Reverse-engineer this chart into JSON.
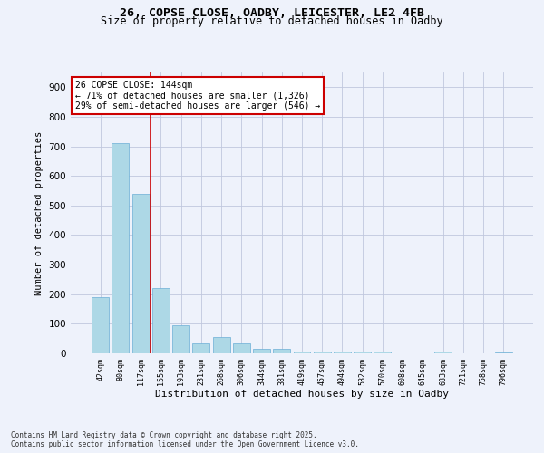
{
  "title_line1": "26, COPSE CLOSE, OADBY, LEICESTER, LE2 4FB",
  "title_line2": "Size of property relative to detached houses in Oadby",
  "xlabel": "Distribution of detached houses by size in Oadby",
  "ylabel": "Number of detached properties",
  "categories": [
    "42sqm",
    "80sqm",
    "117sqm",
    "155sqm",
    "193sqm",
    "231sqm",
    "268sqm",
    "306sqm",
    "344sqm",
    "381sqm",
    "419sqm",
    "457sqm",
    "494sqm",
    "532sqm",
    "570sqm",
    "608sqm",
    "645sqm",
    "683sqm",
    "721sqm",
    "758sqm",
    "796sqm"
  ],
  "values": [
    190,
    710,
    540,
    220,
    95,
    35,
    55,
    35,
    15,
    15,
    5,
    5,
    5,
    5,
    5,
    0,
    0,
    5,
    0,
    0,
    3
  ],
  "bar_color": "#add8e6",
  "bar_edge_color": "#6baed6",
  "vline_index": 2.5,
  "vline_color": "#cc0000",
  "annotation_text": "26 COPSE CLOSE: 144sqm\n← 71% of detached houses are smaller (1,326)\n29% of semi-detached houses are larger (546) →",
  "annotation_box_color": "#ffffff",
  "annotation_box_edge": "#cc0000",
  "bg_color": "#eef2fb",
  "grid_color": "#c0c8de",
  "ylim": [
    0,
    950
  ],
  "yticks": [
    0,
    100,
    200,
    300,
    400,
    500,
    600,
    700,
    800,
    900
  ],
  "footer_line1": "Contains HM Land Registry data © Crown copyright and database right 2025.",
  "footer_line2": "Contains public sector information licensed under the Open Government Licence v3.0."
}
